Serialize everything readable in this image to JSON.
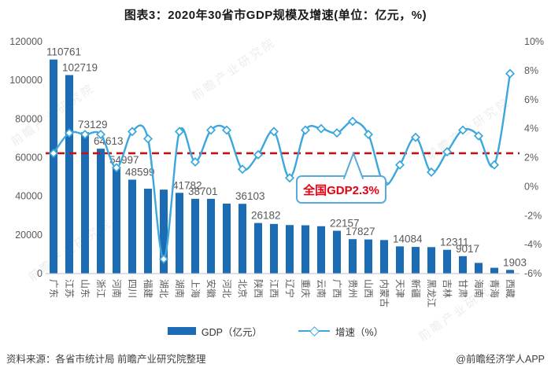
{
  "footer": {
    "source": "资料来源：各省市统计局 前瞻产业研究院整理",
    "credit": "@前瞻经济学人APP"
  },
  "watermark_text": "前瞻产业研究院",
  "colors": {
    "bar": "#1b6cb5",
    "line": "#3ba7dc",
    "reference": "#c01414",
    "annotation_text": "#e60012",
    "annotation_border": "#5aa9dc",
    "axis_text": "#595959",
    "value_label_text": "#595959",
    "axis_line": "#bfbfbf",
    "watermark": "#dedede"
  },
  "chart_data": {
    "type": "combo-bar-line",
    "title": "图表3：2020年30省市GDP规模及增速(单位：亿元，%)",
    "categories": [
      "广东",
      "江苏",
      "山东",
      "浙江",
      "河南",
      "四川",
      "福建",
      "湖北",
      "湖南",
      "上海",
      "安徽",
      "河北",
      "北京",
      "陕西",
      "江西",
      "辽宁",
      "重庆",
      "云南",
      "广西",
      "贵州",
      "山西",
      "内蒙古",
      "天津",
      "新疆",
      "黑龙江",
      "吉林",
      "甘肃",
      "海南",
      "青海",
      "西藏"
    ],
    "series": [
      {
        "name": "GDP（亿元）",
        "type": "bar",
        "axis": "left",
        "values": [
          110761,
          102719,
          73129,
          64613,
          54997,
          48599,
          43904,
          43443,
          41782,
          38701,
          38681,
          36207,
          36103,
          26182,
          25692,
          25115,
          25003,
          24522,
          22157,
          17827,
          17652,
          17360,
          14084,
          13798,
          13699,
          12311,
          9017,
          5532,
          3006,
          1903
        ],
        "labeled_indices": [
          0,
          1,
          2,
          3,
          4,
          5,
          8,
          9,
          12,
          13,
          18,
          19,
          22,
          25,
          26,
          29
        ]
      },
      {
        "name": "增速（%）",
        "type": "line",
        "axis": "right",
        "values": [
          2.3,
          3.7,
          3.6,
          3.6,
          1.3,
          3.8,
          3.3,
          -5.0,
          3.8,
          1.7,
          3.9,
          3.9,
          1.2,
          2.2,
          3.8,
          0.6,
          3.9,
          4.0,
          3.7,
          4.5,
          3.6,
          0.2,
          1.5,
          3.4,
          1.0,
          2.4,
          3.9,
          3.5,
          1.5,
          7.8
        ]
      }
    ],
    "left_axis": {
      "min": 0,
      "max": 120000,
      "step": 20000,
      "ticks": [
        "120000",
        "100000",
        "80000",
        "60000",
        "40000",
        "20000",
        "0"
      ]
    },
    "right_axis": {
      "min": -6,
      "max": 10,
      "step": 2,
      "ticks": [
        "10%",
        "8%",
        "6%",
        "4%",
        "2%",
        "0%",
        "-2%",
        "-4%",
        "-6%"
      ]
    },
    "reference_line": {
      "value": 2.3,
      "label": "全国GDP2.3%"
    },
    "grid": "off",
    "legend_position": "bottom"
  }
}
